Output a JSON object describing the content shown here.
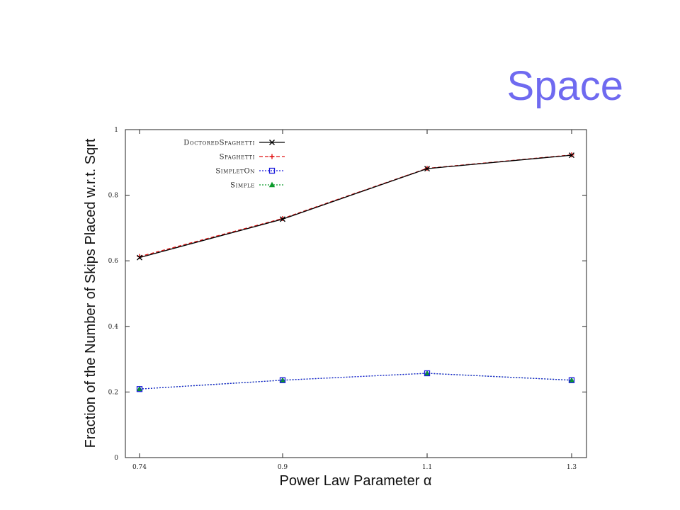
{
  "slide": {
    "title": "Space"
  },
  "colors": {
    "DoctoredSpaghetti": "#000000",
    "Spaghetti": "#e01010",
    "SimpletOn": "#1a1adc",
    "Simple": "#0a9a2a",
    "title": "#6f6af0"
  },
  "chart_data": {
    "type": "line",
    "title": "",
    "xlabel": "Power Law Parameter α",
    "ylabel": "Fraction of the Number of Skips Placed w.r.t. Sqrt",
    "x": [
      0.74,
      0.9,
      1.1,
      1.3
    ],
    "x_tick_labels": [
      "0.74",
      "0.9",
      "1.1",
      "1.3"
    ],
    "y_ticks": [
      0,
      0.2,
      0.4,
      0.6,
      0.8,
      1
    ],
    "y_tick_labels": [
      "0",
      "0.2",
      "0.4",
      "0.6",
      "0.8",
      "1"
    ],
    "ylim": [
      0,
      1
    ],
    "grid": false,
    "legend_position": "top-left",
    "series": [
      {
        "name": "DoctoredSpaghetti",
        "values": [
          0.61,
          0.727,
          0.881,
          0.922
        ],
        "marker": "x",
        "dash": "solid"
      },
      {
        "name": "Spaghetti",
        "values": [
          0.613,
          0.729,
          0.882,
          0.923
        ],
        "marker": "+",
        "dash": "dashed"
      },
      {
        "name": "SimpletOn",
        "values": [
          0.209,
          0.236,
          0.257,
          0.236
        ],
        "marker": "square",
        "dash": "dotted"
      },
      {
        "name": "Simple",
        "values": [
          0.209,
          0.236,
          0.257,
          0.236
        ],
        "marker": "triangle",
        "dash": "dotted"
      }
    ]
  }
}
